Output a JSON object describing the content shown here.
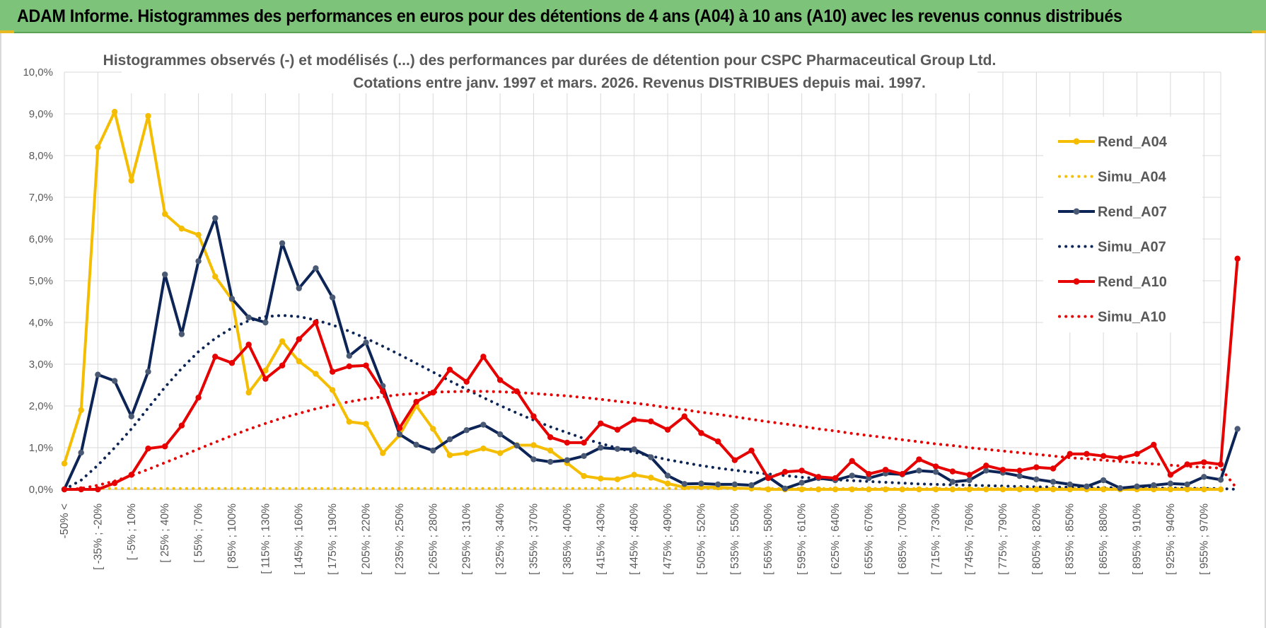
{
  "header": {
    "title": "ADAM Informe. Histogrammes des performances en euros pour des détentions de 4 ans (A04) à 10 ans (A10) avec les revenus connus distribués"
  },
  "colors": {
    "banner": "#7dc47a",
    "A04": "#f5bd00",
    "A07": "#0d2556",
    "A10": "#e60000",
    "text": "#595959",
    "grid": "#d9d9d9"
  },
  "chart_data": {
    "type": "line",
    "title": "Histogrammes observés (-) et modélisés (...) des performances par durées de détention pour CSPC Pharmaceutical Group Ltd.",
    "subtitle": "Cotations entre janv. 1997 et mars. 2026. Revenus DISTRIBUES depuis mai. 1997.",
    "ylim": [
      0,
      10
    ],
    "y_ticks": [
      "0,0%",
      "1,0%",
      "2,0%",
      "3,0%",
      "4,0%",
      "5,0%",
      "6,0%",
      "7,0%",
      "8,0%",
      "9,0%",
      "10,0%"
    ],
    "x_tick_labels": [
      "-50% <",
      "[ -35% ; -20%",
      "[ -5% ; 10%",
      "[ 25% ; 40%",
      "[ 55% ; 70%",
      "[ 85% ; 100%",
      "[ 115% ; 130%",
      "[ 145% ; 160%",
      "[ 175% ; 190%",
      "[ 205% ; 220%",
      "[ 235% ; 250%",
      "[ 265% ; 280%",
      "[ 295% ; 310%",
      "[ 325% ; 340%",
      "[ 355% ; 370%",
      "[ 385% ; 400%",
      "[ 415% ; 430%",
      "[ 445% ; 460%",
      "[ 475% ; 490%",
      "[ 505% ; 520%",
      "[ 535% ; 550%",
      "[ 565% ; 580%",
      "[ 595% ; 610%",
      "[ 625% ; 640%",
      "[ 655% ; 670%",
      "[ 685% ; 700%",
      "[ 715% ; 730%",
      "[ 745% ; 760%",
      "[ 775% ; 790%",
      "[ 805% ; 820%",
      "[ 835% ; 850%",
      "[ 865% ; 880%",
      "[ 895% ; 910%",
      "[ 925% ; 940%",
      "[ 955% ; 970%"
    ],
    "x_tick_every": 2,
    "legend_position": "right",
    "grid": true,
    "series": [
      {
        "name": "Rend_A04",
        "style": "solid",
        "color": "#f5bd00",
        "values": [
          0.62,
          1.9,
          8.2,
          9.05,
          7.4,
          8.95,
          6.6,
          6.25,
          6.1,
          5.1,
          4.55,
          2.32,
          2.85,
          3.55,
          3.07,
          2.77,
          2.38,
          1.62,
          1.57,
          0.87,
          1.3,
          2.0,
          1.45,
          0.82,
          0.87,
          0.98,
          0.87,
          1.06,
          1.06,
          0.93,
          0.63,
          0.32,
          0.26,
          0.24,
          0.35,
          0.28,
          0.14,
          0.05,
          0.05,
          0.05,
          0.03,
          0.02,
          0.0,
          0.0,
          0.0,
          0.0,
          0.0,
          0.0,
          0.0,
          0.0,
          0.0,
          0.0,
          0.0,
          0.0,
          0.0,
          0.0,
          0.0,
          0.0,
          0.0,
          0.0,
          0.0,
          0.0,
          0.0,
          0.0,
          0.0,
          0.0,
          0.0,
          0.0,
          0.0,
          0.0
        ]
      },
      {
        "name": "Simu_A04",
        "style": "dotted",
        "color": "#f5bd00",
        "values": [
          0.0,
          0.02,
          0.02,
          0.02,
          0.02,
          0.02,
          0.02,
          0.02,
          0.02,
          0.02,
          0.02,
          0.02,
          0.02,
          0.02,
          0.02,
          0.02,
          0.02,
          0.02,
          0.02,
          0.02,
          0.02,
          0.02,
          0.02,
          0.02,
          0.02,
          0.02,
          0.02,
          0.02,
          0.02,
          0.02,
          0.02,
          0.02,
          0.02,
          0.02,
          0.02,
          0.02,
          0.02,
          0.02,
          0.02,
          0.02,
          0.02,
          0.02,
          0.02,
          0.02,
          0.02,
          0.02,
          0.02,
          0.02,
          0.02,
          0.02,
          0.02,
          0.02,
          0.02,
          0.02,
          0.02,
          0.02,
          0.02,
          0.02,
          0.02,
          0.02,
          0.02,
          0.02,
          0.02,
          0.02,
          0.02,
          0.02,
          0.02,
          0.02,
          0.02,
          0.0
        ]
      },
      {
        "name": "Rend_A07",
        "style": "solid",
        "color": "#0d2556",
        "values": [
          0.0,
          0.88,
          2.75,
          2.6,
          1.75,
          2.82,
          5.15,
          3.72,
          5.47,
          6.5,
          4.57,
          4.12,
          4.0,
          5.9,
          4.82,
          5.3,
          4.6,
          3.2,
          3.52,
          2.48,
          1.32,
          1.07,
          0.93,
          1.2,
          1.42,
          1.55,
          1.32,
          1.05,
          0.72,
          0.66,
          0.7,
          0.8,
          1.0,
          0.97,
          0.96,
          0.77,
          0.33,
          0.13,
          0.14,
          0.12,
          0.12,
          0.1,
          0.3,
          0.02,
          0.16,
          0.27,
          0.22,
          0.33,
          0.27,
          0.38,
          0.36,
          0.45,
          0.42,
          0.18,
          0.22,
          0.45,
          0.4,
          0.32,
          0.24,
          0.18,
          0.12,
          0.07,
          0.22,
          0.03,
          0.07,
          0.1,
          0.14,
          0.12,
          0.3,
          0.23,
          1.45
        ]
      },
      {
        "name": "Simu_A07",
        "style": "dotted",
        "color": "#0d2556",
        "values": [
          0.0,
          0.22,
          0.58,
          1.0,
          1.45,
          1.95,
          2.45,
          2.9,
          3.3,
          3.62,
          3.87,
          4.04,
          4.14,
          4.17,
          4.14,
          4.06,
          3.94,
          3.79,
          3.62,
          3.43,
          3.23,
          3.02,
          2.81,
          2.6,
          2.4,
          2.2,
          2.01,
          1.83,
          1.66,
          1.5,
          1.36,
          1.22,
          1.1,
          0.99,
          0.89,
          0.8,
          0.71,
          0.64,
          0.57,
          0.51,
          0.46,
          0.41,
          0.37,
          0.33,
          0.29,
          0.26,
          0.23,
          0.21,
          0.19,
          0.17,
          0.15,
          0.13,
          0.12,
          0.11,
          0.1,
          0.09,
          0.08,
          0.07,
          0.06,
          0.06,
          0.05,
          0.05,
          0.04,
          0.04,
          0.03,
          0.03,
          0.03,
          0.03,
          0.02,
          0.02,
          0.0
        ]
      },
      {
        "name": "Rend_A10",
        "style": "solid",
        "color": "#e60000",
        "values": [
          0.0,
          0.0,
          0.0,
          0.15,
          0.35,
          0.98,
          1.03,
          1.53,
          2.2,
          3.18,
          3.03,
          3.47,
          2.65,
          2.97,
          3.6,
          4.0,
          2.82,
          2.95,
          2.97,
          2.35,
          1.47,
          2.1,
          2.32,
          2.87,
          2.58,
          3.18,
          2.62,
          2.35,
          1.75,
          1.25,
          1.12,
          1.12,
          1.58,
          1.43,
          1.67,
          1.63,
          1.43,
          1.75,
          1.35,
          1.15,
          0.7,
          0.93,
          0.27,
          0.42,
          0.45,
          0.3,
          0.27,
          0.68,
          0.37,
          0.47,
          0.37,
          0.72,
          0.55,
          0.43,
          0.35,
          0.57,
          0.47,
          0.45,
          0.53,
          0.5,
          0.85,
          0.85,
          0.8,
          0.75,
          0.85,
          1.07,
          0.35,
          0.6,
          0.65,
          0.6,
          5.53
        ]
      },
      {
        "name": "Simu_A10",
        "style": "dotted",
        "color": "#e60000",
        "values": [
          0.0,
          0.02,
          0.1,
          0.2,
          0.33,
          0.48,
          0.64,
          0.8,
          0.97,
          1.13,
          1.29,
          1.44,
          1.58,
          1.71,
          1.82,
          1.93,
          2.02,
          2.1,
          2.17,
          2.22,
          2.27,
          2.3,
          2.33,
          2.34,
          2.35,
          2.35,
          2.34,
          2.32,
          2.3,
          2.27,
          2.24,
          2.2,
          2.16,
          2.11,
          2.07,
          2.02,
          1.96,
          1.91,
          1.85,
          1.8,
          1.74,
          1.68,
          1.62,
          1.57,
          1.51,
          1.45,
          1.4,
          1.34,
          1.29,
          1.24,
          1.19,
          1.14,
          1.09,
          1.05,
          1.0,
          0.96,
          0.92,
          0.88,
          0.84,
          0.8,
          0.76,
          0.73,
          0.7,
          0.67,
          0.64,
          0.61,
          0.58,
          0.55,
          0.53,
          0.51,
          0.0
        ]
      }
    ]
  }
}
